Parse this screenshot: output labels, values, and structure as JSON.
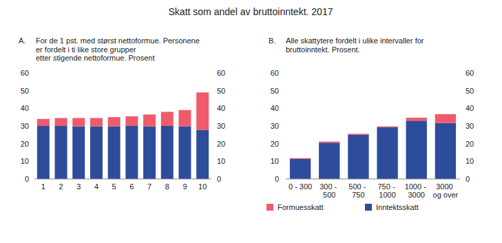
{
  "chart_data": [
    {
      "type": "bar",
      "title": "Skatt som andel av bruttoinntekt. 2017",
      "annotations": [
        "A."
      ],
      "subtitle": [
        "For de 1 pst. med størst nettoformue. Personene",
        "er fordelt i ti like store grupper",
        "etter stigende nettoformue. Prosent"
      ],
      "categories": [
        "1",
        "2",
        "3",
        "4",
        "5",
        "6",
        "7",
        "8",
        "9",
        "10"
      ],
      "series": [
        {
          "name": "Inntektsskatt",
          "color": "#2e4c9c",
          "values": [
            30,
            30,
            29.8,
            29.8,
            29.8,
            30,
            29.8,
            30,
            29.8,
            27.8
          ]
        },
        {
          "name": "Formuesskatt",
          "color": "#ef5b6b",
          "values": [
            4,
            4.5,
            4.7,
            4.7,
            5.2,
            5.5,
            6.7,
            8,
            9.2,
            21.2
          ]
        }
      ],
      "stacked": true,
      "ylim": [
        0,
        60
      ],
      "yticks": [
        0,
        10,
        20,
        30,
        40,
        50,
        60
      ],
      "grid": false,
      "legend": "bottom"
    },
    {
      "type": "bar",
      "annotations": [
        "B."
      ],
      "subtitle": [
        "Alle skattytere fordelt i ulike intervaller for",
        "bruttoinntekt. Prosent."
      ],
      "categories": [
        "0 - 300",
        "300 - 500",
        "500 - 750",
        "750 - 1000",
        "1000 - 3000",
        "3000 og over"
      ],
      "series": [
        {
          "color": "#2e4c9c",
          "values": [
            11.3,
            20.5,
            25,
            29.3,
            33,
            31.7
          ]
        },
        {
          "color": "#ef5b6b",
          "values": [
            0.5,
            0.7,
            0.6,
            0.5,
            1.7,
            5
          ]
        }
      ],
      "stacked": true,
      "ylim": [
        0,
        60
      ],
      "yticks": [
        0,
        10,
        20,
        30,
        40,
        50,
        60
      ],
      "grid": false
    }
  ]
}
